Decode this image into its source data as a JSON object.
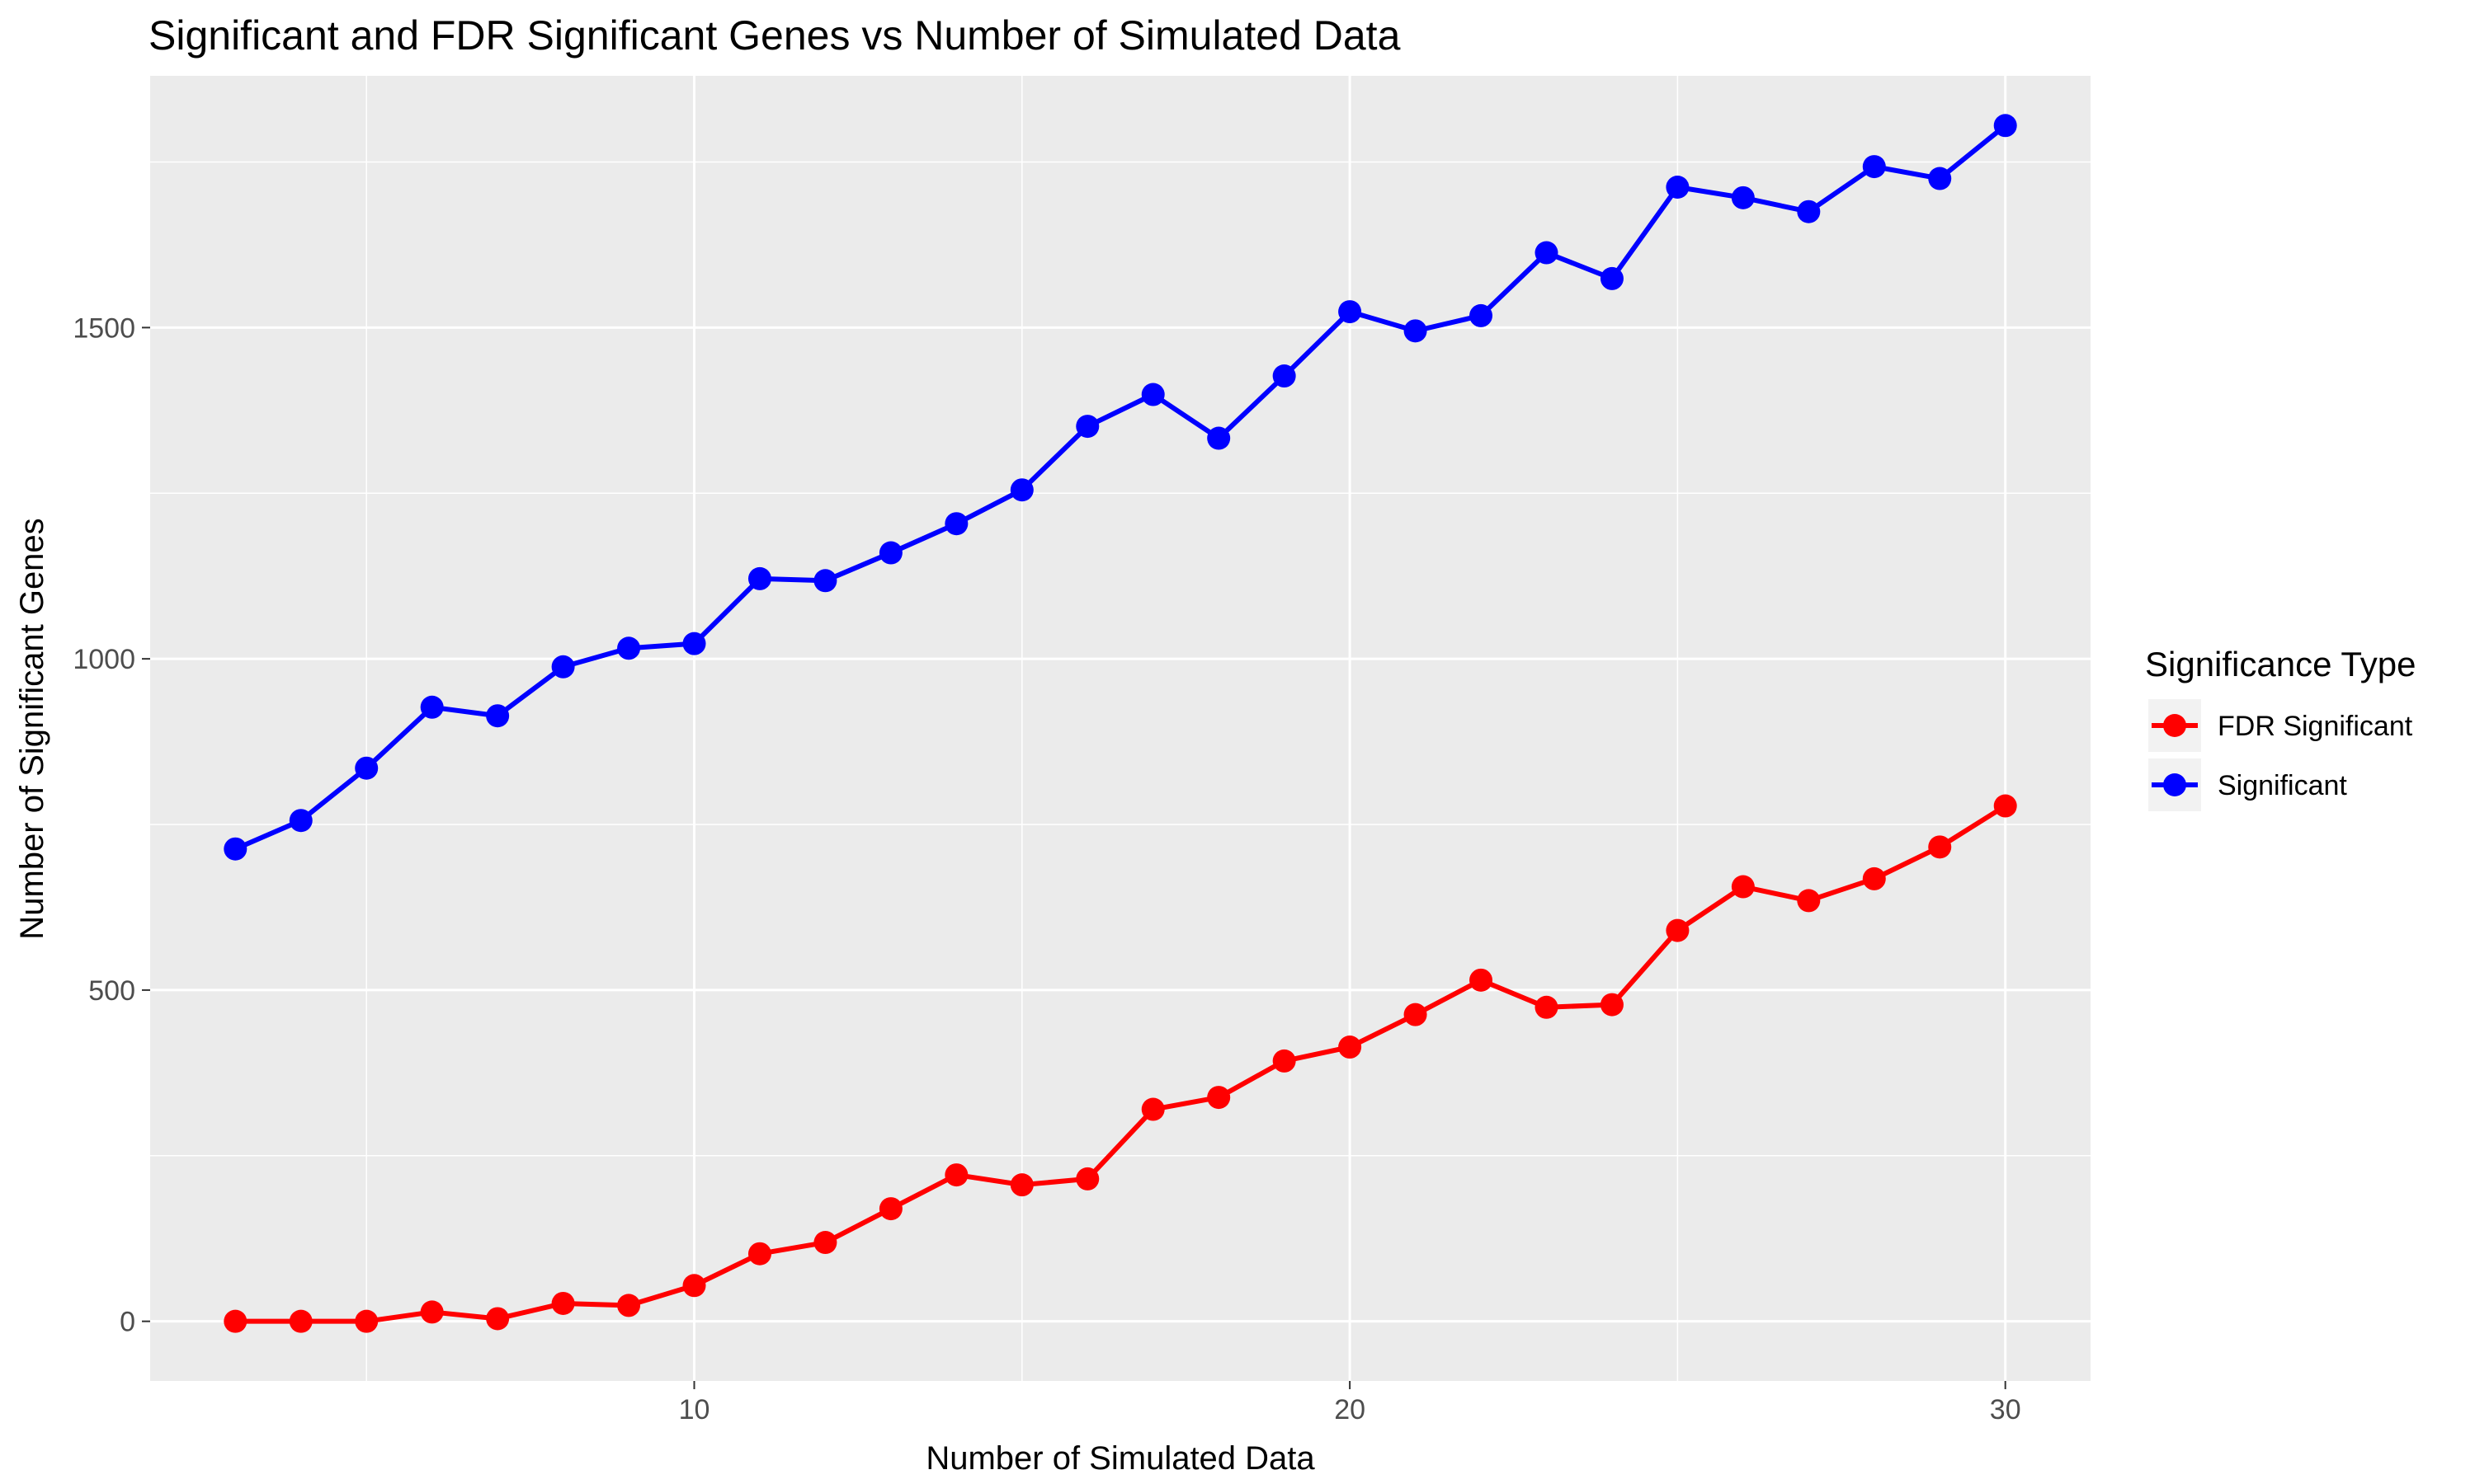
{
  "chart_data": {
    "type": "line",
    "title": "Significant and FDR Significant Genes vs Number of Simulated Data",
    "xlabel": "Number of Simulated Data",
    "ylabel": "Number of Significant Genes",
    "x": [
      3,
      4,
      5,
      6,
      7,
      8,
      9,
      10,
      11,
      12,
      13,
      14,
      15,
      16,
      17,
      18,
      19,
      20,
      21,
      22,
      23,
      24,
      25,
      26,
      27,
      28,
      29,
      30
    ],
    "xlim": [
      1.7,
      31.3
    ],
    "ylim": [
      -90,
      1880
    ],
    "x_ticks": [
      10,
      20,
      30
    ],
    "y_ticks": [
      0,
      500,
      1000,
      1500
    ],
    "grid": true,
    "legend": {
      "title": "Significance Type",
      "position": "right"
    },
    "series": [
      {
        "name": "FDR Significant",
        "color": "#FF0000",
        "values": [
          0,
          0,
          0,
          14,
          4,
          27,
          24,
          54,
          102,
          119,
          170,
          221,
          206,
          215,
          320,
          338,
          393,
          414,
          463,
          515,
          474,
          478,
          590,
          656,
          635,
          668,
          716,
          778
        ]
      },
      {
        "name": "Significant",
        "color": "#0000FF",
        "values": [
          713,
          756,
          835,
          927,
          914,
          988,
          1016,
          1023,
          1121,
          1118,
          1160,
          1204,
          1255,
          1351,
          1399,
          1333,
          1427,
          1524,
          1495,
          1518,
          1613,
          1574,
          1712,
          1696,
          1675,
          1743,
          1725,
          1805
        ]
      }
    ]
  },
  "colors": {
    "panel_background": "#EBEBEB",
    "grid_line": "#FFFFFF",
    "tick_label": "#4D4D4D"
  }
}
